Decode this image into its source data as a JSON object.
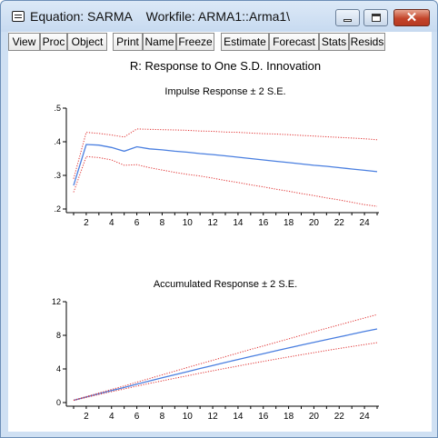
{
  "window": {
    "title": "Equation: SARMA    Workfile: ARMA1::Arma1\\",
    "controls": {
      "close_glyph": "✕"
    }
  },
  "toolbar": {
    "buttons": [
      "View",
      "Proc",
      "Object",
      "Print",
      "Name",
      "Freeze",
      "Estimate",
      "Forecast",
      "Stats",
      "Resids"
    ]
  },
  "figure": {
    "main_title": "R: Response to One S.D. Innovation"
  },
  "chart_data": [
    {
      "type": "line",
      "title": "Impulse Response ± 2 S.E.",
      "xlabel": "",
      "ylabel": "",
      "xlim": [
        1,
        25
      ],
      "ylim": [
        0.2,
        0.5
      ],
      "x_ticks": [
        2,
        4,
        6,
        8,
        10,
        12,
        14,
        16,
        18,
        20,
        22,
        24
      ],
      "y_ticks": [
        ".2",
        ".3",
        ".4",
        ".5"
      ],
      "x": [
        1,
        2,
        3,
        4,
        5,
        6,
        7,
        8,
        9,
        10,
        11,
        12,
        13,
        14,
        15,
        16,
        17,
        18,
        19,
        20,
        21,
        22,
        23,
        24,
        25
      ],
      "series": [
        {
          "role": "response",
          "color": "#4a7fe0",
          "style": "solid",
          "values": [
            0.27,
            0.392,
            0.39,
            0.383,
            0.372,
            0.385,
            0.379,
            0.376,
            0.372,
            0.369,
            0.365,
            0.362,
            0.358,
            0.354,
            0.35,
            0.346,
            0.342,
            0.338,
            0.334,
            0.33,
            0.327,
            0.323,
            0.319,
            0.315,
            0.311
          ]
        },
        {
          "role": "upper",
          "color": "#e03030",
          "style": "dotted",
          "values": [
            0.29,
            0.428,
            0.425,
            0.42,
            0.414,
            0.438,
            0.437,
            0.436,
            0.435,
            0.434,
            0.432,
            0.431,
            0.429,
            0.428,
            0.426,
            0.424,
            0.423,
            0.421,
            0.419,
            0.417,
            0.415,
            0.413,
            0.411,
            0.409,
            0.406
          ]
        },
        {
          "role": "lower",
          "color": "#e03030",
          "style": "dotted",
          "values": [
            0.25,
            0.356,
            0.353,
            0.346,
            0.33,
            0.332,
            0.323,
            0.316,
            0.309,
            0.303,
            0.298,
            0.292,
            0.285,
            0.279,
            0.272,
            0.266,
            0.259,
            0.253,
            0.246,
            0.24,
            0.233,
            0.227,
            0.22,
            0.213,
            0.208
          ]
        }
      ]
    },
    {
      "type": "line",
      "title": "Accumulated Response ± 2 S.E.",
      "xlabel": "",
      "ylabel": "",
      "xlim": [
        1,
        25
      ],
      "ylim": [
        0,
        12
      ],
      "x_ticks": [
        2,
        4,
        6,
        8,
        10,
        12,
        14,
        16,
        18,
        20,
        22,
        24
      ],
      "y_ticks": [
        "0",
        "4",
        "8",
        "12"
      ],
      "x": [
        1,
        2,
        3,
        4,
        5,
        6,
        7,
        8,
        9,
        10,
        11,
        12,
        13,
        14,
        15,
        16,
        17,
        18,
        19,
        20,
        21,
        22,
        23,
        24,
        25
      ],
      "series": [
        {
          "role": "response",
          "color": "#4a7fe0",
          "style": "solid",
          "values": [
            0.27,
            0.66,
            1.05,
            1.43,
            1.8,
            2.19,
            2.57,
            2.94,
            3.31,
            3.68,
            4.05,
            4.41,
            4.77,
            5.12,
            5.47,
            5.82,
            6.16,
            6.5,
            6.83,
            7.16,
            7.49,
            7.81,
            8.13,
            8.45,
            8.76
          ]
        },
        {
          "role": "upper",
          "color": "#e03030",
          "style": "dotted",
          "values": [
            0.29,
            0.71,
            1.14,
            1.56,
            1.98,
            2.42,
            2.86,
            3.3,
            3.73,
            4.17,
            4.6,
            5.03,
            5.46,
            5.89,
            6.32,
            6.74,
            7.16,
            7.58,
            8.0,
            8.42,
            8.83,
            9.24,
            9.65,
            10.06,
            10.47
          ]
        },
        {
          "role": "lower",
          "color": "#e03030",
          "style": "dotted",
          "values": [
            0.25,
            0.61,
            0.96,
            1.3,
            1.62,
            1.96,
            2.28,
            2.58,
            2.89,
            3.19,
            3.49,
            3.78,
            4.07,
            4.35,
            4.63,
            4.9,
            5.17,
            5.43,
            5.69,
            5.94,
            6.19,
            6.43,
            6.67,
            6.9,
            7.12
          ]
        }
      ]
    }
  ]
}
